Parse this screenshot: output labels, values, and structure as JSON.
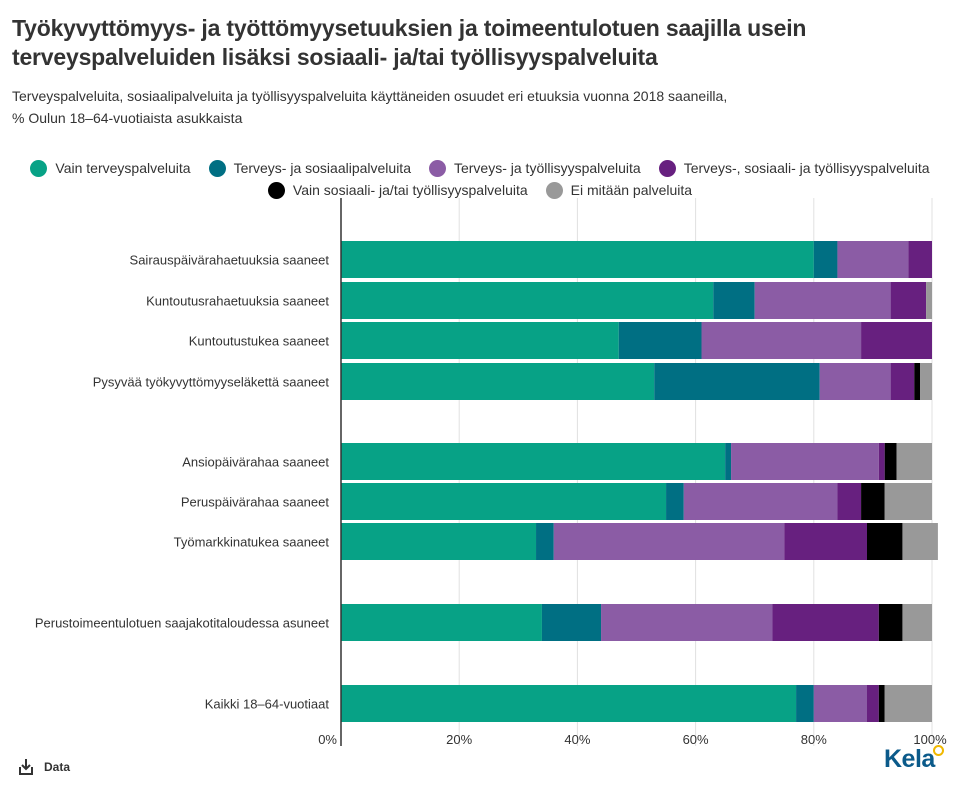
{
  "title": "Työkyvyttömyys- ja työttömyysetuuksien ja toimeentulotuen saajilla usein terveyspalveluiden lisäksi sosiaali- ja/tai työllisyyspalveluita",
  "subtitle_line1": "Terveyspalveluita, sosiaalipalveluita ja työllisyyspalveluita käyttäneiden osuudet eri etuuksia vuonna 2018 saaneilla,",
  "subtitle_line2": "% Oulun 18–64-vuotiaista asukkaista",
  "footer": {
    "data_label": "Data",
    "logo": "Kela"
  },
  "chart_data": {
    "type": "bar",
    "orientation": "horizontal",
    "stacked": true,
    "categories": [
      "Sairauspäivärahaetuuksia saaneet",
      "Kuntoutusrahaetuuksia saaneet",
      "Kuntoutustukea saaneet",
      "Pysyvää työkyvyttömyyseläkettä saaneet",
      "Ansiopäivärahaa saaneet",
      "Peruspäivärahaa saaneet",
      "Työmarkkinatukea saaneet",
      "Perustoimeentulotuen saajakotitaloudessa asuneet",
      "Kaikki 18–64-vuotiaat"
    ],
    "series": [
      {
        "name": "Vain terveyspalveluita",
        "color": "#07a286",
        "values": [
          80,
          63,
          47,
          53,
          65,
          55,
          33,
          34,
          77
        ]
      },
      {
        "name": "Terveys- ja sosiaalipalveluita",
        "color": "#006f83",
        "values": [
          4,
          7,
          14,
          28,
          1,
          3,
          3,
          10,
          3
        ]
      },
      {
        "name": "Terveys- ja työllisyyspalveluita",
        "color": "#8b5ca5",
        "values": [
          12,
          23,
          27,
          12,
          25,
          26,
          39,
          29,
          9
        ]
      },
      {
        "name": "Terveys-, sosiaali- ja työllisyyspalveluita",
        "color": "#67207f",
        "values": [
          4,
          6,
          12,
          4,
          1,
          4,
          14,
          18,
          2
        ]
      },
      {
        "name": "Vain sosiaali- ja/tai työllisyyspalveluita",
        "color": "#000000",
        "values": [
          0,
          0,
          0,
          1,
          2,
          4,
          6,
          4,
          1
        ]
      },
      {
        "name": "Ei mitään palveluita",
        "color": "#999999",
        "values": [
          0,
          1,
          0,
          2,
          6,
          8,
          6,
          5,
          8
        ]
      }
    ],
    "xlim": [
      0,
      100
    ],
    "x_ticks": [
      "0%",
      "20%",
      "40%",
      "60%",
      "80%",
      "100%"
    ],
    "grid": true,
    "legend_position": "top"
  }
}
